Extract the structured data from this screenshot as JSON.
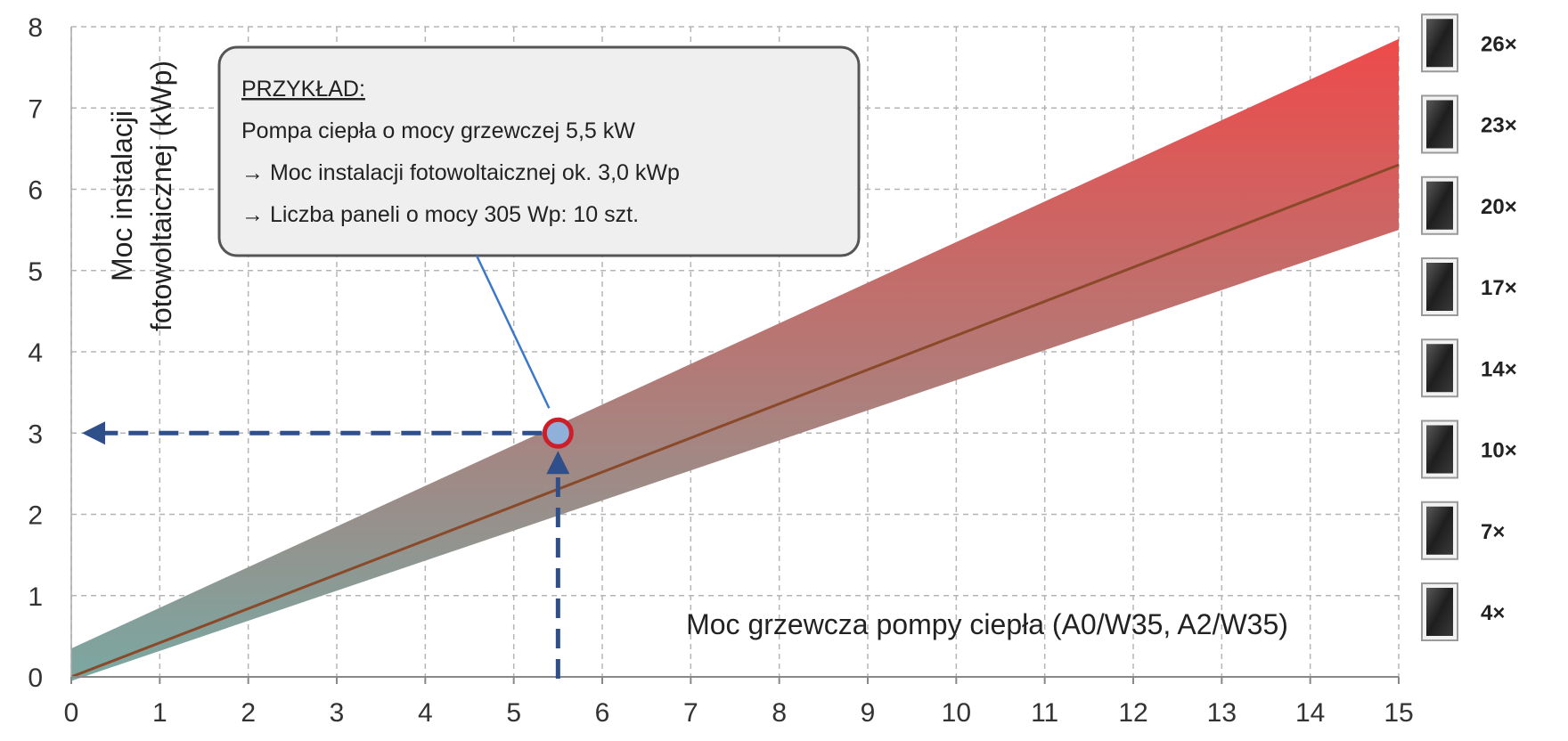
{
  "chart_data": {
    "type": "area",
    "xlabel": "Moc grzewcza pompy ciepła (A0/W35, A2/W35)",
    "ylabel_lines": [
      "Moc instalacji",
      "fotowoltaicznej (kWp)"
    ],
    "xlim": [
      0,
      15
    ],
    "ylim": [
      0,
      8
    ],
    "x_ticks": [
      "0",
      "1",
      "2",
      "3",
      "4",
      "5",
      "6",
      "7",
      "8",
      "9",
      "10",
      "11",
      "12",
      "13",
      "14",
      "15"
    ],
    "y_ticks": [
      "0",
      "1",
      "2",
      "3",
      "4",
      "5",
      "6",
      "7",
      "8"
    ],
    "grid": true,
    "band": {
      "x": [
        0,
        15
      ],
      "upper": [
        0.35,
        7.85
      ],
      "lower": [
        -0.05,
        5.5
      ]
    },
    "series": [
      {
        "x": [
          0,
          15
        ],
        "values": [
          0,
          6.3
        ]
      }
    ],
    "example_point": {
      "x": 5.5,
      "y": 3.0
    },
    "callout": {
      "title": "PRZYKŁAD:",
      "lines": [
        "Pompa ciepła o mocy grzewczej 5,5 kW",
        "→ Moc instalacji fotowoltaicznej ok. 3,0 kWp",
        "→ Liczba paneli o mocy 305 Wp: 10 szt."
      ]
    },
    "panels": [
      {
        "label": "26×",
        "y": 7.8
      },
      {
        "label": "23×",
        "y": 6.8
      },
      {
        "label": "20×",
        "y": 5.8
      },
      {
        "label": "17×",
        "y": 4.8
      },
      {
        "label": "14×",
        "y": 3.8
      },
      {
        "label": "10×",
        "y": 2.8
      },
      {
        "label": "7×",
        "y": 1.8
      },
      {
        "label": "4×",
        "y": 0.8
      }
    ],
    "colors": {
      "band_top": "#ee4a4a",
      "band_bottom": "#7aa8a2",
      "line": "#8a4a2a",
      "arrow": "#2e4f8a",
      "point_ring": "#cc1f2a",
      "point_fill": "#8fb0d8",
      "grid": "#b5b5b5",
      "panel": "#2a2a2a"
    }
  }
}
